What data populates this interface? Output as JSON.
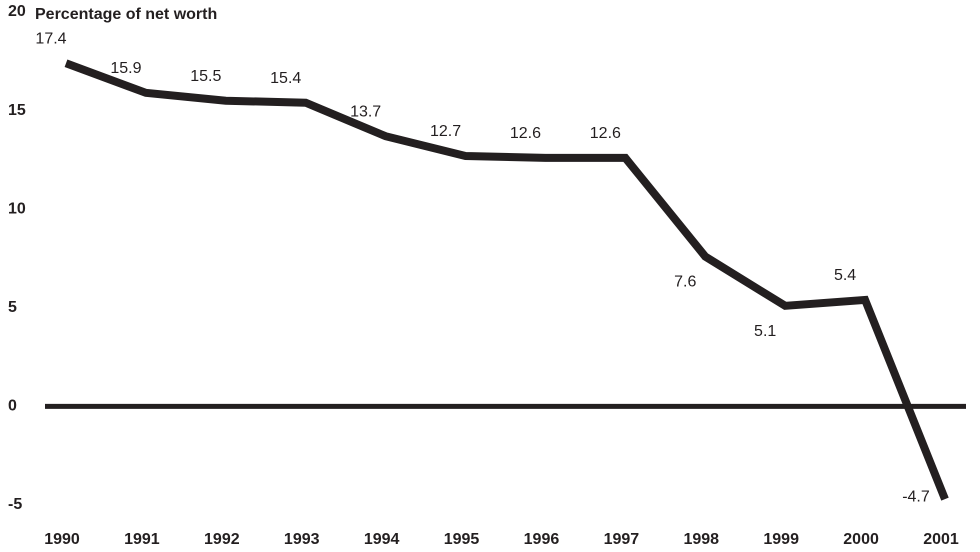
{
  "chart_data": {
    "type": "line",
    "title": "Percentage of net worth",
    "categories": [
      "1990",
      "1991",
      "1992",
      "1993",
      "1994",
      "1995",
      "1996",
      "1997",
      "1998",
      "1999",
      "2000",
      "2001"
    ],
    "values": [
      17.4,
      15.9,
      15.5,
      15.4,
      13.7,
      12.7,
      12.6,
      12.6,
      7.6,
      5.1,
      5.4,
      -4.7
    ],
    "color": "#231f20",
    "ylim": [
      -5,
      20
    ],
    "yticks": [
      -5,
      0,
      5,
      10,
      15,
      20
    ]
  }
}
